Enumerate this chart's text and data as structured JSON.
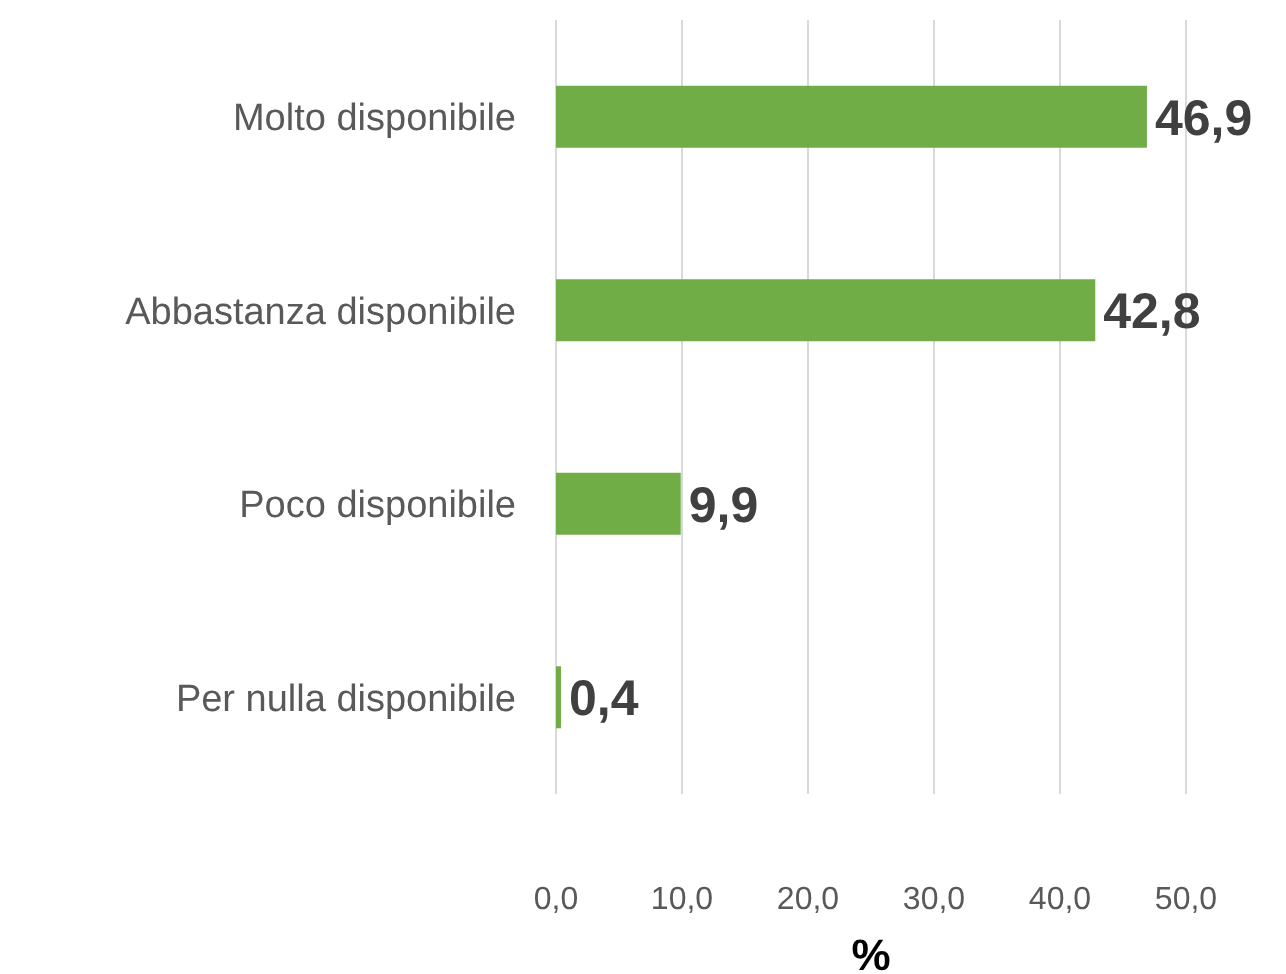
{
  "chart_data": {
    "type": "bar",
    "orientation": "horizontal",
    "categories": [
      "Molto disponibile",
      "Abbastanza disponibile",
      "Poco disponibile",
      "Per nulla disponibile"
    ],
    "values": [
      46.9,
      42.8,
      9.9,
      0.4
    ],
    "color": "#70ad47",
    "value_labels": [
      "46,9",
      "42,8",
      "9,9",
      "0,4"
    ],
    "xlim": [
      0,
      50
    ],
    "xticks": [
      {
        "value": 0,
        "label": "0,0"
      },
      {
        "value": 10,
        "label": "10,0"
      },
      {
        "value": 20,
        "label": "20,0"
      },
      {
        "value": 30,
        "label": "30,0"
      },
      {
        "value": 40,
        "label": "40,0"
      },
      {
        "value": 50,
        "label": "50,0"
      }
    ],
    "xlabel": "%",
    "grid": "x"
  }
}
